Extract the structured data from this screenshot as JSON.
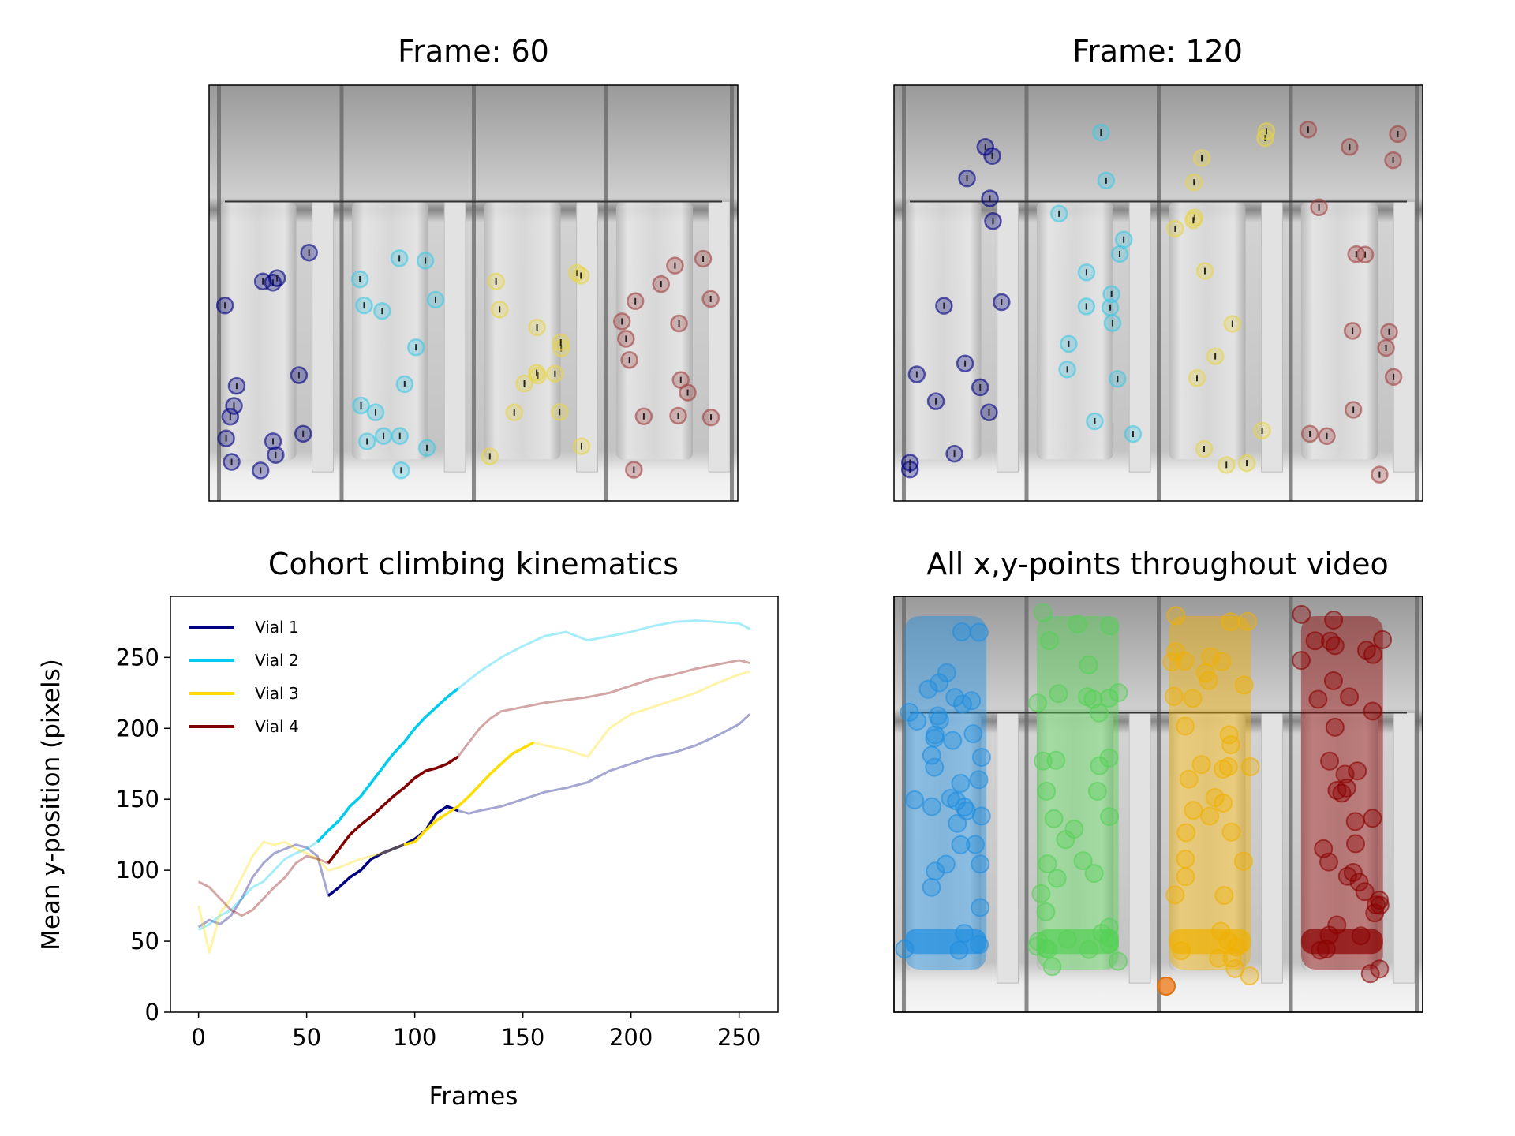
{
  "panels": {
    "frame60_title": "Frame: 60",
    "frame120_title": "Frame: 120",
    "scatter_title": "All x,y-points throughout video"
  },
  "colors": {
    "vial1": "#000080",
    "vial2": "#00ccee",
    "vial3": "#ffdd00",
    "vial4": "#800000",
    "scatter_vial1": "#1f8ee0",
    "scatter_vial2": "#55d055",
    "scatter_vial3": "#f0b000",
    "scatter_vial4": "#8b0000"
  },
  "chart_data": {
    "type": "line",
    "title": "Cohort climbing kinematics",
    "xlabel": "Frames",
    "ylabel": "Mean y-position (pixels)",
    "xlim": [
      -13,
      268
    ],
    "ylim": [
      0,
      293
    ],
    "xticks": [
      0,
      50,
      100,
      150,
      200,
      250
    ],
    "yticks": [
      0,
      50,
      100,
      150,
      200,
      250
    ],
    "legend_position": "upper-left",
    "series": [
      {
        "name": "Vial 1",
        "color": "#000080",
        "highlight": [
          60,
          120
        ],
        "points": [
          [
            0,
            60
          ],
          [
            5,
            65
          ],
          [
            10,
            62
          ],
          [
            15,
            68
          ],
          [
            20,
            80
          ],
          [
            25,
            95
          ],
          [
            30,
            105
          ],
          [
            35,
            112
          ],
          [
            40,
            115
          ],
          [
            45,
            118
          ],
          [
            50,
            116
          ],
          [
            55,
            110
          ],
          [
            60,
            82
          ],
          [
            65,
            88
          ],
          [
            70,
            95
          ],
          [
            75,
            100
          ],
          [
            80,
            108
          ],
          [
            85,
            112
          ],
          [
            90,
            115
          ],
          [
            95,
            118
          ],
          [
            100,
            122
          ],
          [
            105,
            128
          ],
          [
            110,
            140
          ],
          [
            115,
            145
          ],
          [
            120,
            142
          ],
          [
            125,
            140
          ],
          [
            130,
            142
          ],
          [
            140,
            145
          ],
          [
            150,
            150
          ],
          [
            160,
            155
          ],
          [
            170,
            158
          ],
          [
            180,
            162
          ],
          [
            190,
            170
          ],
          [
            200,
            175
          ],
          [
            210,
            180
          ],
          [
            220,
            183
          ],
          [
            230,
            188
          ],
          [
            240,
            195
          ],
          [
            250,
            203
          ],
          [
            255,
            210
          ]
        ]
      },
      {
        "name": "Vial 2",
        "color": "#00ccee",
        "highlight": [
          55,
          120
        ],
        "points": [
          [
            0,
            58
          ],
          [
            5,
            62
          ],
          [
            10,
            68
          ],
          [
            15,
            72
          ],
          [
            20,
            80
          ],
          [
            25,
            88
          ],
          [
            30,
            92
          ],
          [
            35,
            100
          ],
          [
            40,
            108
          ],
          [
            45,
            112
          ],
          [
            50,
            115
          ],
          [
            55,
            120
          ],
          [
            60,
            128
          ],
          [
            65,
            135
          ],
          [
            70,
            145
          ],
          [
            75,
            152
          ],
          [
            80,
            162
          ],
          [
            85,
            172
          ],
          [
            90,
            182
          ],
          [
            95,
            190
          ],
          [
            100,
            200
          ],
          [
            105,
            208
          ],
          [
            110,
            215
          ],
          [
            115,
            222
          ],
          [
            120,
            228
          ],
          [
            130,
            240
          ],
          [
            140,
            250
          ],
          [
            150,
            258
          ],
          [
            160,
            265
          ],
          [
            170,
            268
          ],
          [
            180,
            262
          ],
          [
            190,
            265
          ],
          [
            200,
            268
          ],
          [
            210,
            272
          ],
          [
            220,
            275
          ],
          [
            230,
            276
          ],
          [
            240,
            275
          ],
          [
            250,
            274
          ],
          [
            255,
            270
          ]
        ]
      },
      {
        "name": "Vial 3",
        "color": "#ffdd00",
        "highlight": [
          95,
          155
        ],
        "points": [
          [
            0,
            75
          ],
          [
            5,
            42
          ],
          [
            10,
            70
          ],
          [
            15,
            80
          ],
          [
            20,
            95
          ],
          [
            25,
            110
          ],
          [
            30,
            120
          ],
          [
            35,
            118
          ],
          [
            40,
            120
          ],
          [
            45,
            115
          ],
          [
            50,
            112
          ],
          [
            55,
            108
          ],
          [
            60,
            100
          ],
          [
            65,
            102
          ],
          [
            70,
            105
          ],
          [
            75,
            108
          ],
          [
            80,
            110
          ],
          [
            85,
            112
          ],
          [
            90,
            115
          ],
          [
            95,
            118
          ],
          [
            100,
            120
          ],
          [
            105,
            128
          ],
          [
            110,
            135
          ],
          [
            115,
            140
          ],
          [
            120,
            145
          ],
          [
            125,
            152
          ],
          [
            130,
            160
          ],
          [
            135,
            168
          ],
          [
            140,
            175
          ],
          [
            145,
            182
          ],
          [
            150,
            186
          ],
          [
            155,
            190
          ],
          [
            160,
            188
          ],
          [
            170,
            185
          ],
          [
            180,
            180
          ],
          [
            190,
            200
          ],
          [
            200,
            210
          ],
          [
            210,
            215
          ],
          [
            220,
            220
          ],
          [
            230,
            225
          ],
          [
            240,
            232
          ],
          [
            250,
            238
          ],
          [
            255,
            240
          ]
        ]
      },
      {
        "name": "Vial 4",
        "color": "#800000",
        "highlight": [
          60,
          120
        ],
        "points": [
          [
            0,
            92
          ],
          [
            5,
            88
          ],
          [
            10,
            80
          ],
          [
            15,
            72
          ],
          [
            20,
            68
          ],
          [
            25,
            72
          ],
          [
            30,
            80
          ],
          [
            35,
            88
          ],
          [
            40,
            95
          ],
          [
            45,
            105
          ],
          [
            50,
            110
          ],
          [
            55,
            108
          ],
          [
            60,
            105
          ],
          [
            65,
            115
          ],
          [
            70,
            125
          ],
          [
            75,
            132
          ],
          [
            80,
            138
          ],
          [
            85,
            145
          ],
          [
            90,
            152
          ],
          [
            95,
            158
          ],
          [
            100,
            165
          ],
          [
            105,
            170
          ],
          [
            110,
            172
          ],
          [
            115,
            175
          ],
          [
            120,
            180
          ],
          [
            125,
            190
          ],
          [
            130,
            200
          ],
          [
            135,
            207
          ],
          [
            140,
            212
          ],
          [
            150,
            215
          ],
          [
            160,
            218
          ],
          [
            170,
            220
          ],
          [
            180,
            222
          ],
          [
            190,
            225
          ],
          [
            200,
            230
          ],
          [
            210,
            235
          ],
          [
            220,
            238
          ],
          [
            230,
            242
          ],
          [
            240,
            245
          ],
          [
            250,
            248
          ],
          [
            255,
            246
          ]
        ]
      }
    ]
  }
}
